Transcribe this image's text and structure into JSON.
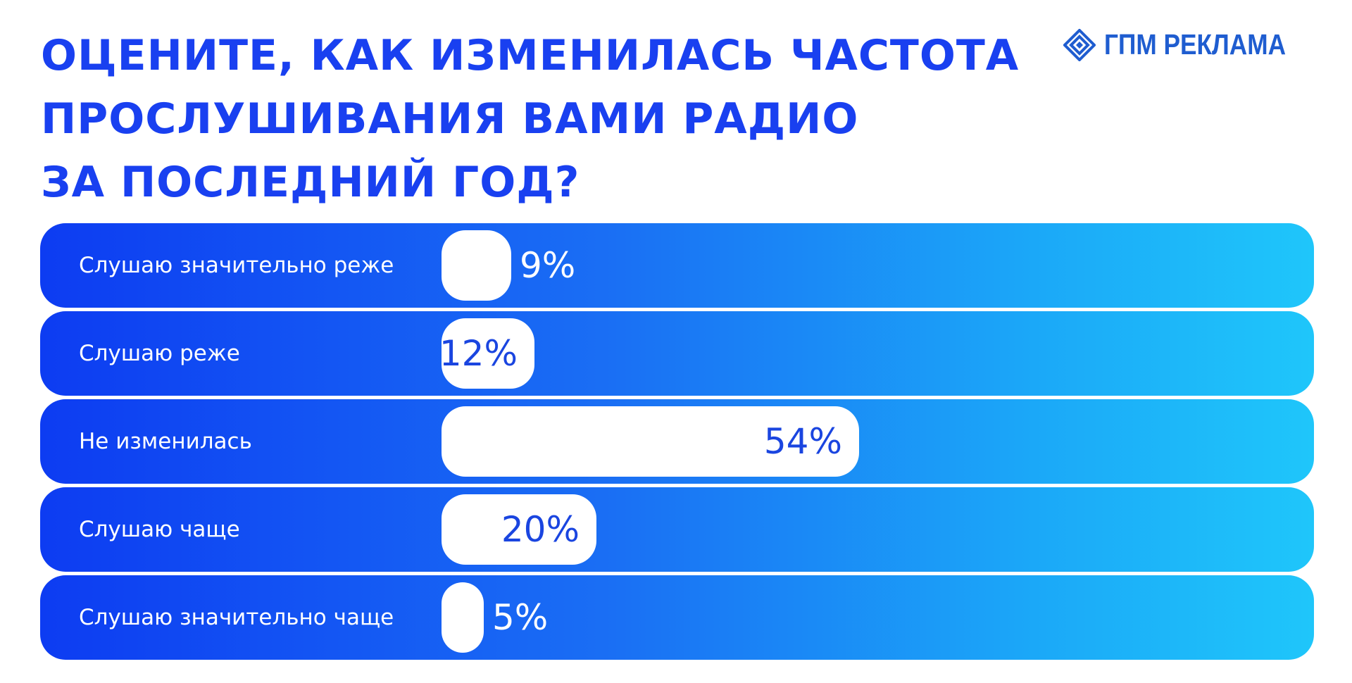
{
  "title": "ОЦЕНИТЕ, КАК ИЗМЕНИЛАСЬ ЧАСТОТА\nПРОСЛУШИВАНИЯ ВАМИ РАДИО\nЗА ПОСЛЕДНИЙ ГОД?",
  "logo": {
    "text": "ГПМ РЕКЛАМА",
    "icon": "gpm-diamond-logo-icon",
    "color": "#1f5dd0"
  },
  "colors": {
    "title": "#1940f0",
    "row_gradient_start": "#0d3cf2",
    "row_gradient_end": "#1fc6fa",
    "bar": "#ffffff",
    "value_text": "#1a45e0"
  },
  "chart_data": {
    "type": "bar",
    "orientation": "horizontal",
    "title": "ОЦЕНИТЕ, КАК ИЗМЕНИЛАСЬ ЧАСТОТА ПРОСЛУШИВАНИЯ ВАМИ РАДИО ЗА ПОСЛЕДНИЙ ГОД?",
    "categories": [
      "Слушаю значительно реже",
      "Слушаю реже",
      "Не изменилась",
      "Слушаю чаще",
      "Слушаю значительно чаще"
    ],
    "values": [
      9,
      12,
      54,
      20,
      5
    ],
    "value_labels": [
      "9%",
      "12%",
      "54%",
      "20%",
      "5%"
    ],
    "unit": "%",
    "xlim": [
      0,
      100
    ],
    "grid": false,
    "legend": "none"
  }
}
